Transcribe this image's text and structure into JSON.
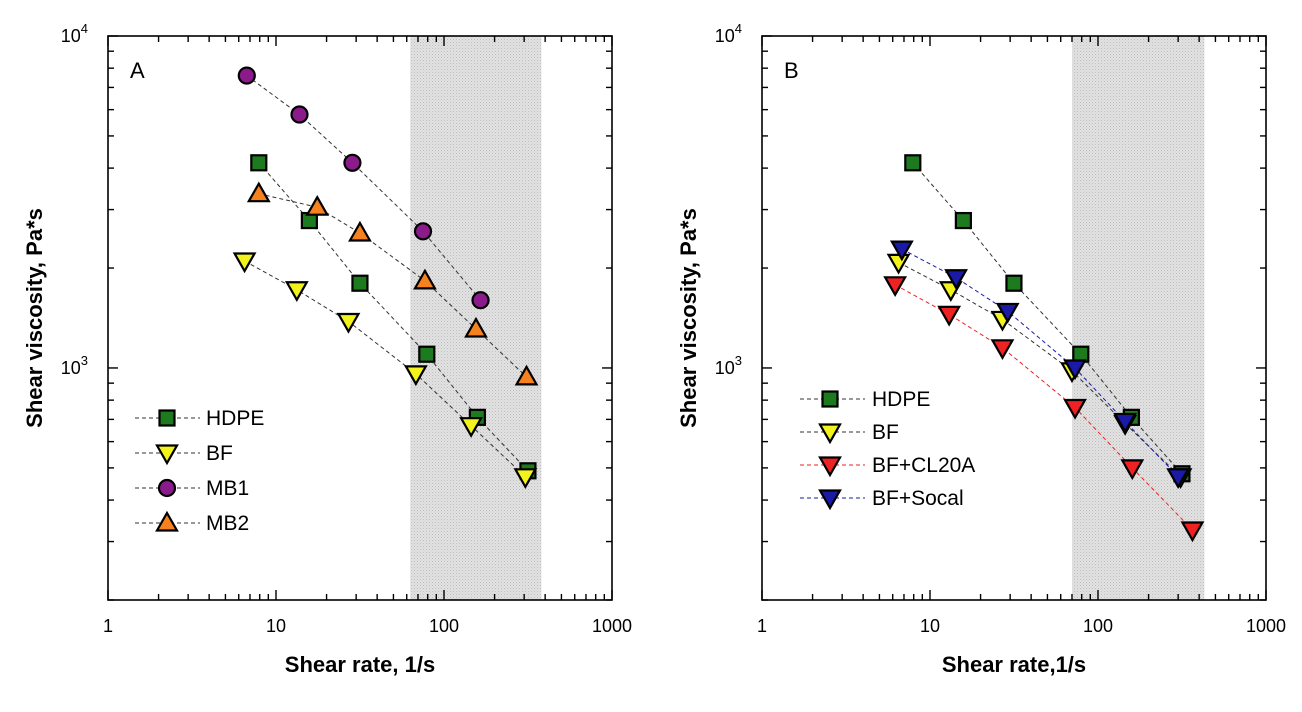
{
  "chart_data": [
    {
      "type": "scatter",
      "panel_label": "A",
      "xlabel": "Shear rate, 1/s",
      "ylabel": "Shear viscosity, Pa*s",
      "xscale": "log",
      "yscale": "log",
      "xlim": [
        1,
        1000
      ],
      "ylim": [
        200,
        10000
      ],
      "xticks": [
        1,
        10,
        100,
        1000
      ],
      "xtick_labels": [
        "1",
        "10",
        "100",
        "1000"
      ],
      "yticks": [
        1000,
        10000
      ],
      "ytick_labels": [
        "10^3",
        "10^4"
      ],
      "shaded_band_x": [
        63,
        380
      ],
      "grid": false,
      "legend_position": "lower-left",
      "series": [
        {
          "name": "HDPE",
          "marker": "square",
          "color": "#1e7a1e",
          "x": [
            7.9,
            15.8,
            31.6,
            79,
            158,
            316
          ],
          "y": [
            4150,
            2780,
            1800,
            1100,
            710,
            490
          ]
        },
        {
          "name": "BF",
          "marker": "triangle-down",
          "color": "#f2f21c",
          "x": [
            6.5,
            13.3,
            27,
            68,
            145,
            305
          ],
          "y": [
            2100,
            1720,
            1380,
            960,
            670,
            470
          ]
        },
        {
          "name": "MB1",
          "marker": "circle",
          "color": "#8b1a8b",
          "x": [
            6.7,
            13.8,
            28.5,
            75,
            165
          ],
          "y": [
            7600,
            5800,
            4150,
            2580,
            1600
          ]
        },
        {
          "name": "MB2",
          "marker": "triangle-up",
          "color": "#f5821e",
          "x": [
            7.9,
            17.6,
            31.6,
            77,
            155,
            310
          ],
          "y": [
            3350,
            3050,
            2550,
            1830,
            1310,
            940
          ]
        }
      ]
    },
    {
      "type": "scatter",
      "panel_label": "B",
      "xlabel": "Shear rate,1/s",
      "ylabel": "Shear viscosity, Pa*s",
      "xscale": "log",
      "yscale": "log",
      "xlim": [
        1,
        1000
      ],
      "ylim": [
        200,
        10000
      ],
      "xticks": [
        1,
        10,
        100,
        1000
      ],
      "xtick_labels": [
        "1",
        "10",
        "100",
        "1000"
      ],
      "yticks": [
        1000,
        10000
      ],
      "ytick_labels": [
        "10^3",
        "10^4"
      ],
      "shaded_band_x": [
        70,
        430
      ],
      "grid": false,
      "legend_position": "lower-left",
      "series": [
        {
          "name": "HDPE",
          "marker": "square",
          "color": "#1e7a1e",
          "x": [
            7.9,
            15.8,
            31.6,
            79,
            158,
            316
          ],
          "y": [
            4150,
            2780,
            1800,
            1100,
            710,
            480
          ]
        },
        {
          "name": "BF",
          "marker": "triangle-down",
          "color": "#f2f21c",
          "x": [
            6.5,
            13.3,
            27,
            70,
            145,
            310
          ],
          "y": [
            2080,
            1720,
            1400,
            980,
            680,
            470
          ]
        },
        {
          "name": "BF+CL20A",
          "marker": "triangle-down",
          "color": "#ee2222",
          "x": [
            6.2,
            13,
            27,
            73,
            160,
            365
          ],
          "y": [
            1780,
            1450,
            1150,
            760,
            500,
            325
          ]
        },
        {
          "name": "BF+Socal",
          "marker": "triangle-down",
          "color": "#1a1aa6",
          "x": [
            6.8,
            14.3,
            29,
            73,
            145,
            300
          ],
          "y": [
            2280,
            1870,
            1480,
            1000,
            690,
            470
          ]
        }
      ]
    }
  ]
}
